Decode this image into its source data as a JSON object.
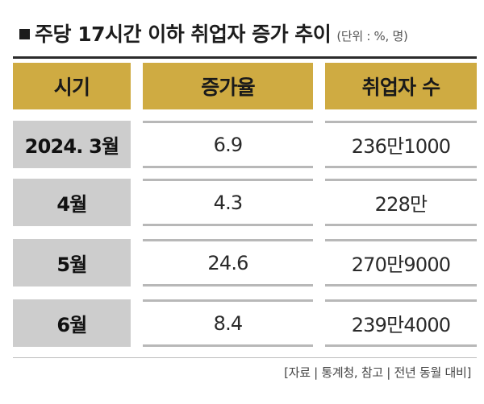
{
  "title": {
    "main": "주당 17시간 이하 취업자 증가 추이",
    "unit": "(단위 : %, 명)"
  },
  "table": {
    "headers": [
      "시기",
      "증가율",
      "취업자 수"
    ],
    "rows": [
      {
        "period": "2024. 3월",
        "rate": "6.9",
        "employed": "236만1000"
      },
      {
        "period": "4월",
        "rate": "4.3",
        "employed": "228만"
      },
      {
        "period": "5월",
        "rate": "24.6",
        "employed": "270만9000"
      },
      {
        "period": "6월",
        "rate": "8.4",
        "employed": "239만4000"
      }
    ]
  },
  "source": "[자료 | 통계청, 참고 | 전년 동월 대비]",
  "colors": {
    "header_background": "#cfab42",
    "period_cell_background": "#cdcdcd",
    "data_cell_border": "#b8b8b8"
  }
}
